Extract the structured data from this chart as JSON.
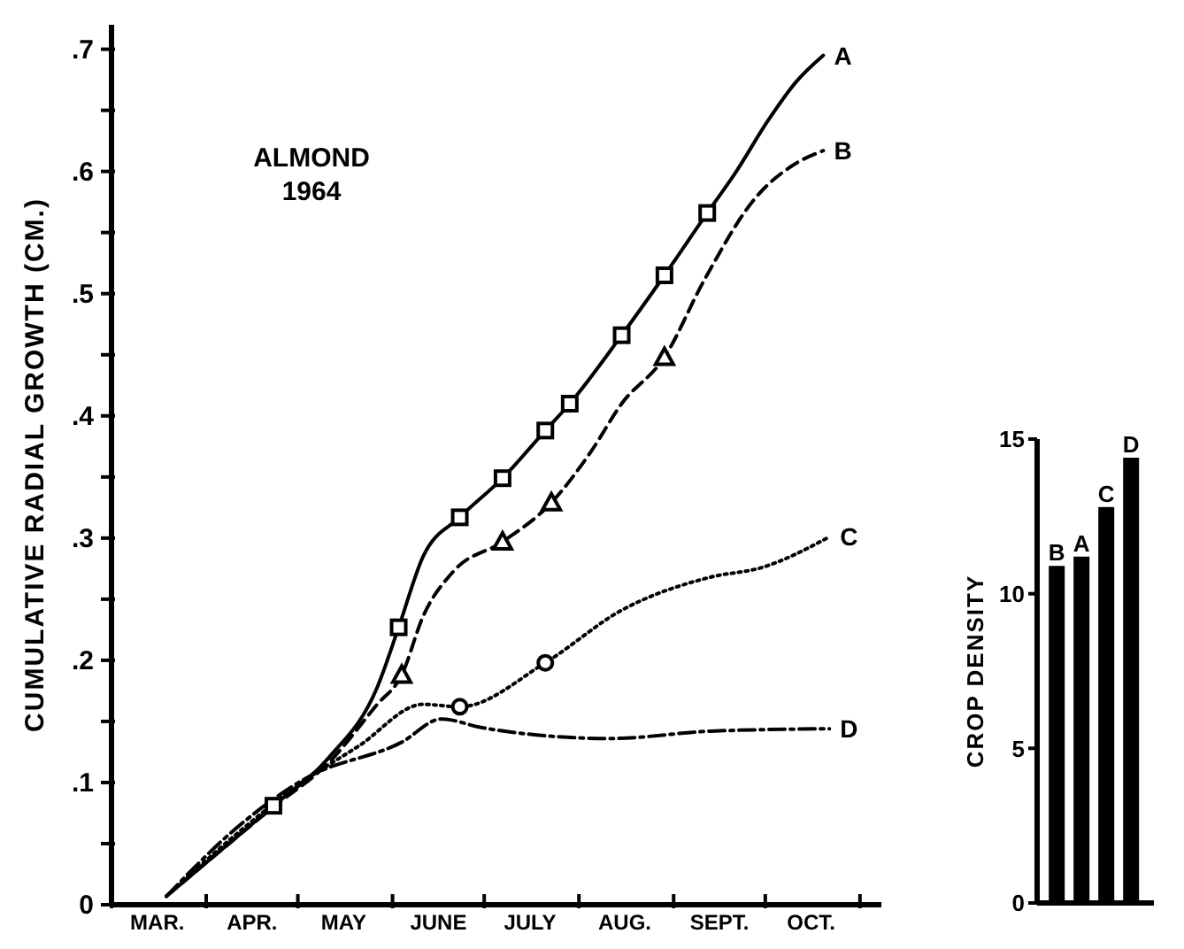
{
  "chart_data": [
    {
      "type": "line",
      "title": "ALMOND\n1964",
      "ylabel": "CUMULATIVE RADIAL GROWTH (CM.)",
      "xlim": [
        "--03-01",
        "--11-08"
      ],
      "ylim": [
        0,
        0.72
      ],
      "xticks": [
        {
          "value": "--03-01",
          "label": null
        },
        {
          "value": "--03-16",
          "label": "MAR."
        },
        {
          "value": "--04-01",
          "label": null
        },
        {
          "value": "--04-16",
          "label": "APR."
        },
        {
          "value": "--05-01",
          "label": null
        },
        {
          "value": "--05-16",
          "label": "MAY"
        },
        {
          "value": "--06-01",
          "label": null
        },
        {
          "value": "--06-16",
          "label": "JUNE"
        },
        {
          "value": "--07-01",
          "label": null
        },
        {
          "value": "--07-16",
          "label": "JULY"
        },
        {
          "value": "--08-01",
          "label": null
        },
        {
          "value": "--08-16",
          "label": "AUG."
        },
        {
          "value": "--09-01",
          "label": null
        },
        {
          "value": "--09-16",
          "label": "SEPT."
        },
        {
          "value": "--10-01",
          "label": null
        },
        {
          "value": "--10-16",
          "label": "OCT."
        },
        {
          "value": "--11-01",
          "label": null
        }
      ],
      "yticks": [
        {
          "value": 0,
          "label": "0"
        },
        {
          "value": 0.05,
          "label": null
        },
        {
          "value": 0.1,
          "label": ".1"
        },
        {
          "value": 0.15,
          "label": null
        },
        {
          "value": 0.2,
          "label": ".2"
        },
        {
          "value": 0.25,
          "label": null
        },
        {
          "value": 0.3,
          "label": ".3"
        },
        {
          "value": 0.35,
          "label": null
        },
        {
          "value": 0.4,
          "label": ".4"
        },
        {
          "value": 0.45,
          "label": null
        },
        {
          "value": 0.5,
          "label": ".5"
        },
        {
          "value": 0.55,
          "label": null
        },
        {
          "value": 0.6,
          "label": ".6"
        },
        {
          "value": 0.65,
          "label": null
        },
        {
          "value": 0.7,
          "label": ".7"
        }
      ],
      "series": [
        {
          "name": "A",
          "type": "line",
          "color": "#000000",
          "line_style": "solid",
          "x": [
            "--03-19",
            "--04-23",
            "--05-11",
            "--05-27",
            "--06-03",
            "--06-11",
            "--06-23",
            "--07-07",
            "--07-21",
            "--07-29",
            "--08-15",
            "--08-29",
            "--09-12",
            "--09-21",
            "--10-02",
            "--10-11",
            "--10-20"
          ],
          "values": [
            0.007,
            0.081,
            0.12,
            0.178,
            0.227,
            0.285,
            0.317,
            0.349,
            0.388,
            0.41,
            0.466,
            0.515,
            0.566,
            0.598,
            0.642,
            0.673,
            0.695
          ]
        },
        {
          "name": "B",
          "type": "line",
          "color": "#000000",
          "line_style": "dashed",
          "x": [
            "--03-19",
            "--04-23",
            "--05-11",
            "--05-27",
            "--06-04",
            "--06-11",
            "--06-21",
            "--07-07",
            "--07-23",
            "--08-05",
            "--08-15",
            "--08-29",
            "--09-11",
            "--09-28",
            "--10-10",
            "--10-20"
          ],
          "values": [
            0.007,
            0.08,
            0.116,
            0.164,
            0.188,
            0.236,
            0.273,
            0.297,
            0.329,
            0.371,
            0.41,
            0.448,
            0.511,
            0.579,
            0.605,
            0.617
          ]
        },
        {
          "name": "C",
          "type": "line",
          "color": "#000000",
          "line_style": "dotted",
          "x": [
            "--03-19",
            "--04-11",
            "--04-30",
            "--05-21",
            "--06-11",
            "--06-23",
            "--07-21",
            "--08-15",
            "--09-13",
            "--09-30",
            "--10-22"
          ],
          "values": [
            0.007,
            0.058,
            0.096,
            0.13,
            0.164,
            0.162,
            0.198,
            0.241,
            0.268,
            0.276,
            0.301
          ]
        },
        {
          "name": "D",
          "type": "line",
          "color": "#000000",
          "line_style": "dashdot",
          "x": [
            "--03-19",
            "--04-11",
            "--05-04",
            "--06-04",
            "--06-17",
            "--06-30",
            "--07-14",
            "--08-11",
            "--09-13",
            "--10-22"
          ],
          "values": [
            0.007,
            0.063,
            0.104,
            0.133,
            0.152,
            0.145,
            0.14,
            0.136,
            0.142,
            0.144
          ]
        },
        {
          "type": "scatter",
          "color": "#000000",
          "marker": "square",
          "x": [
            "--04-23",
            "--06-03",
            "--06-23",
            "--07-07",
            "--07-21",
            "--07-29",
            "--08-15",
            "--08-29",
            "--09-12"
          ],
          "values": [
            0.081,
            0.227,
            0.317,
            0.349,
            0.388,
            0.41,
            0.466,
            0.515,
            0.566
          ]
        },
        {
          "type": "scatter",
          "color": "#000000",
          "marker": "triangle",
          "x": [
            "--06-04",
            "--07-07",
            "--07-23",
            "--08-29"
          ],
          "values": [
            0.188,
            0.297,
            0.329,
            0.448
          ]
        },
        {
          "type": "scatter",
          "color": "#000000",
          "marker": "circle",
          "x": [
            "--06-23",
            "--07-21"
          ],
          "values": [
            0.162,
            0.198
          ]
        }
      ]
    },
    {
      "type": "bar",
      "ylabel": "CROP DENSITY",
      "categories": [
        null
      ],
      "ylim": [
        0,
        15
      ],
      "yticks": [
        0,
        5,
        10,
        15
      ],
      "tick_labels": "y",
      "series": [
        {
          "name": "B",
          "color": "#000000",
          "values": [
            10.9
          ]
        },
        {
          "name": "A",
          "color": "#000000",
          "values": [
            11.2
          ]
        },
        {
          "name": "C",
          "color": "#000000",
          "values": [
            12.8
          ]
        },
        {
          "name": "D",
          "color": "#000000",
          "values": [
            14.4
          ]
        }
      ]
    }
  ]
}
